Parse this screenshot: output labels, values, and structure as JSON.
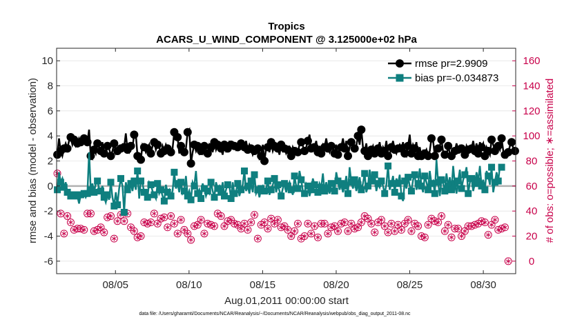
{
  "chart_data": {
    "type": "line",
    "title": "Tropics",
    "subtitle": "ACARS_U_WIND_COMPONENT @ 3.125000e+02 hPa",
    "ylabel": "rmse and bias (model - observation)",
    "y2label": "# of obs: o=possible; ∗=assimilated",
    "xlabel": "Aug.01,2011 00:00:00 start",
    "footnote": "data file: /Users/gharamti/Documents/NCAR/Reanalysis/~/Documents/NCAR/Reanalysis/webpub/obs_diag_output_2011-08.nc",
    "ylim": [
      -7,
      11
    ],
    "y2lim": [
      -10,
      170
    ],
    "xlim": [
      1.0,
      32.2
    ],
    "x_ticks": [
      {
        "value": 5,
        "label": "08/05"
      },
      {
        "value": 10,
        "label": "08/10"
      },
      {
        "value": 15,
        "label": "08/15"
      },
      {
        "value": 20,
        "label": "08/20"
      },
      {
        "value": 25,
        "label": "08/25"
      },
      {
        "value": 30,
        "label": "08/30"
      }
    ],
    "y_ticks": [
      "-6",
      "-4",
      "-2",
      "0",
      "2",
      "4",
      "6",
      "8",
      "10"
    ],
    "y2_ticks": [
      "0",
      "20",
      "40",
      "60",
      "80",
      "100",
      "120",
      "140",
      "160"
    ],
    "legend_position": "top-right",
    "series": [
      {
        "name": "rmse pr=2.9909",
        "color": "#000000",
        "marker": "circle",
        "values": [
          2.5,
          3.8,
          2.8,
          2.4,
          3.0,
          3.4,
          3.0,
          3.6,
          3.9,
          3.3,
          3.7,
          3.2,
          3.4,
          3.8,
          3.5,
          3.5,
          3.8,
          3.9,
          3.5,
          4.5,
          2.4,
          2.2,
          2.9,
          2.6,
          3.4,
          3.1,
          2.8,
          3.5,
          2.6,
          2.5,
          3.2,
          3.0,
          2.4,
          2.8,
          3.4,
          2.6,
          2.8,
          3.1,
          3.0,
          3.3,
          3.1,
          4.2,
          2.9,
          2.7,
          3.2,
          3.1,
          4.1,
          4.1,
          2.4,
          2.5,
          2.1,
          3.3,
          3.1,
          2.7,
          3.0,
          3.3,
          2.6,
          3.2,
          3.5,
          2.9,
          3.3,
          3.1,
          2.6,
          3.2,
          2.8,
          3.3,
          3.0,
          2.8,
          2.7,
          3.0,
          4.3,
          4.0,
          3.9,
          2.6,
          3.2,
          3.1,
          2.7,
          3.0,
          4.3,
          4.5,
          1.8,
          2.7,
          3.3,
          2.8,
          3.2,
          2.6,
          2.8,
          2.6,
          3.2,
          2.9,
          2.6,
          3.3,
          3.1,
          2.7,
          3.5,
          2.9,
          3.3,
          3.1,
          3.0,
          2.5,
          3.3,
          2.8,
          3.0,
          3.5,
          3.3,
          3.4,
          3.2,
          2.9,
          3.1,
          3.2,
          3.4,
          3.2,
          3.1,
          3.6,
          2.9,
          3.3,
          3.0,
          2.5,
          2.8,
          3.0,
          3.0,
          2.2,
          2.4,
          3.3,
          2.0,
          3.0,
          3.1,
          2.7,
          3.5,
          2.8,
          3.2,
          3.1,
          3.0,
          2.5,
          3.3,
          2.8,
          3.0,
          2.6,
          2.9,
          3.1,
          2.4,
          3.1,
          2.8,
          3.0,
          2.7,
          3.3,
          3.5,
          3.2,
          2.8,
          3.1,
          3.6,
          4.1,
          3.0,
          3.3,
          3.1,
          3.6,
          2.7,
          3.2,
          2.6,
          3.3,
          3.1,
          3.8,
          3.0,
          2.7,
          3.2,
          3.1,
          2.6,
          3.3,
          2.5,
          3.0,
          3.1,
          3.8,
          3.0,
          3.6,
          2.4,
          3.1,
          3.5,
          3.3,
          3.0,
          3.2,
          4.0,
          3.3,
          4.5,
          3.1,
          2.8,
          3.4,
          2.4,
          2.7,
          2.9,
          3.2,
          2.6,
          3.0,
          3.0,
          3.5,
          2.6,
          3.1,
          2.8,
          3.6,
          2.4,
          2.5,
          3.1,
          3.6,
          2.9,
          2.6,
          3.0,
          3.3,
          3.0,
          3.5,
          2.6,
          2.4,
          3.2,
          4.1,
          2.6,
          3.3,
          3.0,
          3.5,
          2.4,
          3.1,
          2.4,
          2.8,
          2.6,
          2.9,
          2.4,
          2.8,
          3.8,
          3.6,
          2.4,
          3.1,
          3.0,
          3.2,
          3.7,
          2.7,
          2.5,
          2.4,
          3.2,
          2.6,
          2.4,
          2.7,
          2.8,
          3.4,
          2.9,
          3.2,
          3.0,
          2.9,
          2.5,
          3.2,
          2.9,
          3.1,
          3.0,
          3.6,
          2.8,
          3.4,
          2.6,
          3.5,
          3.1,
          3.4,
          2.4,
          3.1,
          2.8,
          2.5,
          3.7,
          3.3,
          2.8,
          2.7,
          3.2,
          2.9,
          3.8,
          2.8,
          2.5,
          2.3,
          2.7,
          3.2,
          3.5,
          3.0,
          2.8
        ]
      },
      {
        "name": "bias pr=-0.034873",
        "color": "#0f7f7f",
        "marker": "square",
        "values": [
          -0.3,
          1.1,
          0.3,
          0.6,
          -0.1,
          0.3,
          -0.5,
          -0.5,
          -0.8,
          -0.6,
          -0.7,
          -0.9,
          -0.8,
          -1.4,
          -0.7,
          -0.5,
          -0.6,
          -0.9,
          -0.6,
          2.7,
          -0.3,
          0.2,
          -0.5,
          0.2,
          0.4,
          -0.2,
          -0.4,
          0.0,
          -0.9,
          -1.3,
          -0.7,
          -1.1,
          0.3,
          -0.9,
          -1.6,
          -0.5,
          -1.5,
          -0.2,
          0.6,
          0.0,
          -2.1,
          0.3,
          -0.3,
          0.3,
          0.2,
          -0.4,
          0.4,
          -0.3,
          1.2,
          -1.0,
          0.4,
          0.2,
          -0.5,
          -0.4,
          -0.9,
          0.3,
          0.1,
          -0.4,
          -0.7,
          -1.0,
          0.2,
          -0.6,
          -0.3,
          -0.8,
          -1.2,
          0.1,
          -0.5,
          -0.3,
          -0.8,
          -0.4,
          1.1,
          -0.2,
          0.2,
          -0.5,
          0.3,
          -0.6,
          -0.4,
          0.8,
          -0.8,
          -0.4,
          -1.1,
          0.3,
          0.0,
          1.2,
          -0.6,
          -0.3,
          -1.0,
          0.2,
          -0.2,
          -0.8,
          -0.4,
          -0.6,
          0.3,
          -0.4,
          -0.9,
          0.3,
          -0.2,
          0.0,
          -0.5,
          0.3,
          -0.8,
          -0.3,
          0.1,
          0.0,
          -1.0,
          0.3,
          -0.6,
          -0.4,
          0.2,
          -0.8,
          -0.3,
          0.1,
          1.2,
          -0.4,
          0.0,
          -0.6,
          0.4,
          -0.5,
          0.9,
          -0.6,
          -0.3,
          -0.9,
          -0.2,
          0.0,
          -0.4,
          -0.2,
          0.4,
          -0.7,
          -0.3,
          0.1,
          0.6,
          -0.5,
          0.1,
          -0.4,
          -0.8,
          -0.2,
          0.2,
          -0.5,
          0.0,
          0.3,
          -0.3,
          -0.7,
          0.8,
          0.0,
          -0.2,
          1.2,
          0.5,
          -0.4,
          -0.6,
          0.2,
          0.0,
          -0.8,
          -0.3,
          0.6,
          0.1,
          -0.2,
          -0.5,
          0.2,
          -0.1,
          1.0,
          -0.4,
          0.3,
          -0.2,
          -0.6,
          0.2,
          0.0,
          -0.4,
          1.1,
          0.4,
          -0.3,
          0.2,
          -0.5,
          0.0,
          0.8,
          -0.6,
          1.5,
          0.3,
          -0.2,
          0.5,
          -0.4,
          0.1,
          0.7,
          -0.3,
          0.2,
          1.0,
          -0.5,
          0.0,
          1.3,
          0.4,
          0.3,
          0.9,
          -0.4,
          0.2,
          -0.1,
          0.4,
          0.0,
          -0.6,
          0.1,
          1.6,
          -0.3,
          0.2,
          0.8,
          -0.5,
          0.6,
          0.2,
          0.9,
          -0.8,
          -1.2,
          0.4,
          -0.2,
          0.7,
          0.0,
          -0.4,
          0.5,
          0.9,
          -0.3,
          0.2,
          1.4,
          0.0,
          -0.5,
          0.8,
          0.3,
          -0.3,
          1.2,
          0.2,
          0.4,
          -0.6,
          2.1,
          0.3,
          -0.8,
          0.5,
          0.2,
          -0.4,
          1.0,
          0.0,
          0.7,
          -0.3,
          1.6,
          0.2,
          -0.6,
          0.4,
          1.3,
          -0.2,
          0.5,
          0.9,
          1.5,
          -0.6,
          0.3,
          0.6,
          -0.4,
          0.2,
          1.1,
          0.4,
          1.6,
          0.0,
          0.5,
          -0.3,
          1.2,
          0.8,
          0.1,
          1.5,
          -0.5,
          0.3,
          1.1,
          0.4,
          1.6,
          1.5
        ]
      }
    ],
    "obs_possible": [
      70,
      97,
      38,
      36,
      22,
      25,
      36,
      29,
      31,
      29,
      25,
      24,
      26,
      23,
      26,
      30,
      25,
      32,
      38,
      25,
      38,
      26,
      24,
      22,
      25,
      30,
      27,
      18,
      23,
      22,
      35,
      25,
      36,
      23,
      18,
      30,
      32,
      26,
      37,
      38,
      32,
      21,
      38,
      20,
      27,
      28,
      24,
      29,
      19,
      28,
      20,
      38,
      31,
      36,
      30,
      35,
      31,
      32,
      38,
      28,
      30,
      30,
      34,
      33,
      35,
      25,
      27,
      27,
      36,
      20,
      30,
      28,
      22,
      29,
      33,
      28,
      25,
      27,
      22,
      30,
      17,
      18,
      28,
      25,
      29,
      25,
      33,
      32,
      22,
      30,
      30,
      28,
      29,
      27,
      28,
      32,
      38,
      40,
      36,
      31,
      28,
      30,
      32,
      27,
      33,
      34,
      30,
      26,
      29,
      32,
      26,
      19,
      30,
      30,
      25,
      20,
      31,
      35,
      37,
      33,
      18,
      24,
      29,
      27,
      31,
      24,
      26,
      32,
      34,
      22,
      30,
      28,
      33,
      31,
      27,
      32,
      28,
      28,
      25,
      27,
      20,
      22,
      24,
      25,
      30,
      26,
      18,
      18,
      20,
      26,
      30,
      33,
      22,
      25,
      28,
      24,
      19,
      19,
      30,
      28,
      30,
      29,
      22,
      24,
      27,
      37,
      28,
      28,
      24,
      25,
      30,
      30,
      31,
      32,
      24,
      25,
      30,
      30,
      26,
      30,
      27,
      25,
      31,
      26,
      36,
      24,
      34,
      31,
      30,
      35,
      23,
      29,
      31,
      37,
      33,
      31,
      28,
      20,
      23,
      22,
      30,
      31,
      24,
      22,
      29,
      32,
      25,
      28,
      30,
      33,
      33,
      25,
      24,
      20,
      30,
      26,
      28,
      28,
      20,
      19,
      19,
      21,
      29,
      24,
      34,
      25,
      32,
      34,
      31,
      28,
      36,
      30,
      24,
      19,
      29,
      28,
      19,
      25,
      26,
      22,
      26,
      25,
      20,
      31,
      24,
      32,
      28,
      31,
      28,
      25,
      29,
      29,
      30,
      25,
      32,
      28,
      31,
      20,
      21,
      22,
      29,
      22,
      33,
      31,
      25,
      33,
      26,
      19,
      27,
      21,
      0
    ],
    "obs_assimilated": [
      70,
      97,
      38,
      36,
      22,
      25,
      36,
      29,
      31,
      29,
      25,
      24,
      26,
      23,
      26,
      30,
      25,
      32,
      38,
      25,
      38,
      26,
      24,
      22,
      25,
      30,
      27,
      18,
      23,
      22,
      35,
      25,
      36,
      23,
      18,
      30,
      32,
      26,
      37,
      38,
      32,
      21,
      38,
      20,
      27,
      28,
      24,
      29,
      19,
      28,
      20,
      38,
      31,
      36,
      30,
      35,
      31,
      32,
      38,
      28,
      30,
      30,
      34,
      33,
      35,
      25,
      27,
      27,
      36,
      20,
      30,
      28,
      22,
      29,
      33,
      28,
      25,
      27,
      22,
      30,
      17,
      18,
      28,
      25,
      29,
      25,
      33,
      32,
      22,
      30,
      30,
      28,
      29,
      27,
      28,
      32,
      38,
      40,
      36,
      31,
      28,
      30,
      32,
      27,
      33,
      34,
      30,
      26,
      29,
      32,
      26,
      19,
      30,
      30,
      25,
      20,
      31,
      35,
      37,
      33,
      18,
      24,
      29,
      27,
      31,
      24,
      26,
      32,
      34,
      22,
      30,
      28,
      33,
      31,
      27,
      32,
      28,
      28,
      25,
      27,
      20,
      22,
      24,
      25,
      30,
      26,
      18,
      18,
      20,
      26,
      30,
      33,
      22,
      25,
      28,
      24,
      19,
      19,
      30,
      28,
      30,
      29,
      22,
      24,
      27,
      37,
      28,
      28,
      24,
      25,
      30,
      30,
      31,
      32,
      24,
      25,
      30,
      30,
      26,
      30,
      27,
      25,
      31,
      26,
      36,
      24,
      34,
      31,
      30,
      35,
      23,
      29,
      31,
      37,
      33,
      31,
      28,
      20,
      23,
      22,
      30,
      31,
      24,
      22,
      29,
      32,
      25,
      28,
      30,
      33,
      33,
      25,
      24,
      20,
      30,
      26,
      28,
      28,
      20,
      19,
      19,
      21,
      29,
      24,
      34,
      25,
      32,
      34,
      31,
      28,
      36,
      30,
      24,
      19,
      29,
      28,
      19,
      25,
      26,
      22,
      26,
      25,
      20,
      31,
      24,
      32,
      28,
      31,
      28,
      25,
      29,
      29,
      30,
      25,
      32,
      28,
      31,
      20,
      21,
      22,
      29,
      22,
      33,
      31,
      25,
      33,
      26,
      19,
      27,
      21,
      0
    ]
  }
}
